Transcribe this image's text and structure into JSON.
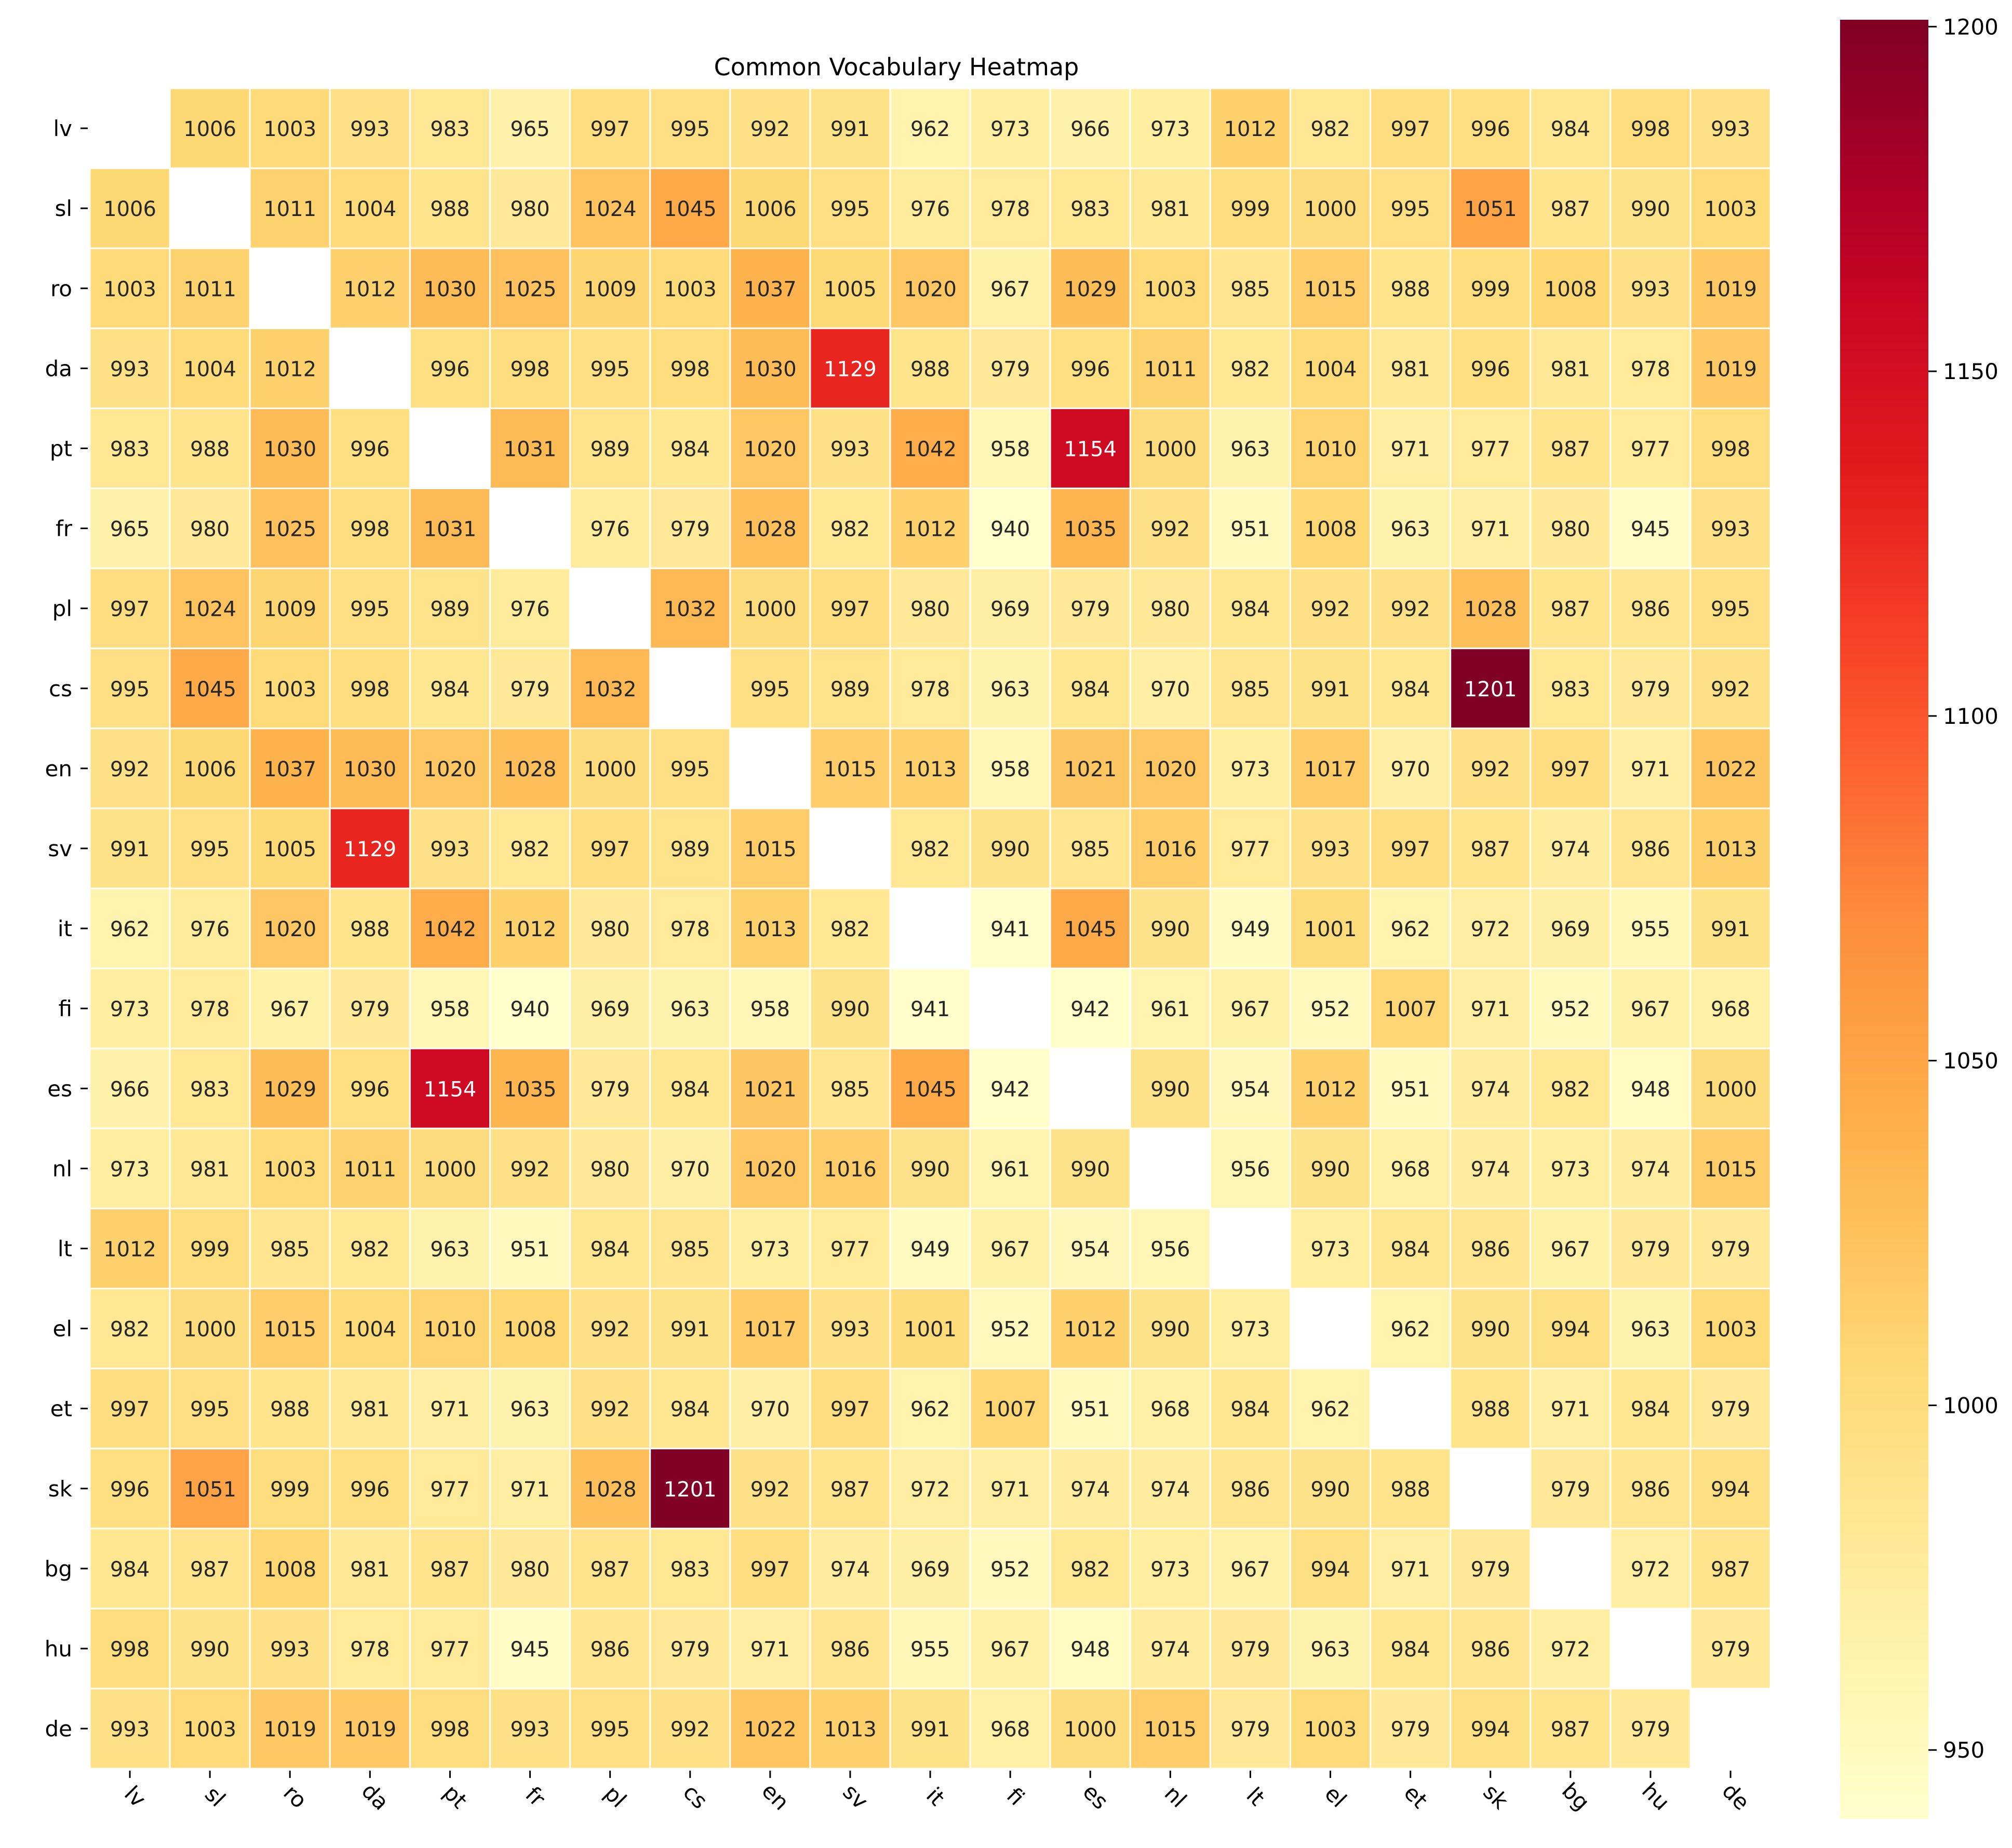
{
  "chart_data": {
    "type": "heatmap",
    "title": "Common Vocabulary Heatmap",
    "x_labels": [
      "lv",
      "sl",
      "ro",
      "da",
      "pt",
      "fr",
      "pl",
      "cs",
      "en",
      "sv",
      "it",
      "fi",
      "es",
      "nl",
      "lt",
      "el",
      "et",
      "sk",
      "bg",
      "hu",
      "de"
    ],
    "y_labels": [
      "lv",
      "sl",
      "ro",
      "da",
      "pt",
      "fr",
      "pl",
      "cs",
      "en",
      "sv",
      "it",
      "fi",
      "es",
      "nl",
      "lt",
      "el",
      "et",
      "sk",
      "bg",
      "hu",
      "de"
    ],
    "values": [
      [
        null,
        1006,
        1003,
        993,
        983,
        965,
        997,
        995,
        992,
        991,
        962,
        973,
        966,
        973,
        1012,
        982,
        997,
        996,
        984,
        998,
        993
      ],
      [
        1006,
        null,
        1011,
        1004,
        988,
        980,
        1024,
        1045,
        1006,
        995,
        976,
        978,
        983,
        981,
        999,
        1000,
        995,
        1051,
        987,
        990,
        1003
      ],
      [
        1003,
        1011,
        null,
        1012,
        1030,
        1025,
        1009,
        1003,
        1037,
        1005,
        1020,
        967,
        1029,
        1003,
        985,
        1015,
        988,
        999,
        1008,
        993,
        1019
      ],
      [
        993,
        1004,
        1012,
        null,
        996,
        998,
        995,
        998,
        1030,
        1129,
        988,
        979,
        996,
        1011,
        982,
        1004,
        981,
        996,
        981,
        978,
        1019
      ],
      [
        983,
        988,
        1030,
        996,
        null,
        1031,
        989,
        984,
        1020,
        993,
        1042,
        958,
        1154,
        1000,
        963,
        1010,
        971,
        977,
        987,
        977,
        998
      ],
      [
        965,
        980,
        1025,
        998,
        1031,
        null,
        976,
        979,
        1028,
        982,
        1012,
        940,
        1035,
        992,
        951,
        1008,
        963,
        971,
        980,
        945,
        993
      ],
      [
        997,
        1024,
        1009,
        995,
        989,
        976,
        null,
        1032,
        1000,
        997,
        980,
        969,
        979,
        980,
        984,
        992,
        992,
        1028,
        987,
        986,
        995
      ],
      [
        995,
        1045,
        1003,
        998,
        984,
        979,
        1032,
        null,
        995,
        989,
        978,
        963,
        984,
        970,
        985,
        991,
        984,
        1201,
        983,
        979,
        992
      ],
      [
        992,
        1006,
        1037,
        1030,
        1020,
        1028,
        1000,
        995,
        null,
        1015,
        1013,
        958,
        1021,
        1020,
        973,
        1017,
        970,
        992,
        997,
        971,
        1022
      ],
      [
        991,
        995,
        1005,
        1129,
        993,
        982,
        997,
        989,
        1015,
        null,
        982,
        990,
        985,
        1016,
        977,
        993,
        997,
        987,
        974,
        986,
        1013
      ],
      [
        962,
        976,
        1020,
        988,
        1042,
        1012,
        980,
        978,
        1013,
        982,
        null,
        941,
        1045,
        990,
        949,
        1001,
        962,
        972,
        969,
        955,
        991
      ],
      [
        973,
        978,
        967,
        979,
        958,
        940,
        969,
        963,
        958,
        990,
        941,
        null,
        942,
        961,
        967,
        952,
        1007,
        971,
        952,
        967,
        968
      ],
      [
        966,
        983,
        1029,
        996,
        1154,
        1035,
        979,
        984,
        1021,
        985,
        1045,
        942,
        null,
        990,
        954,
        1012,
        951,
        974,
        982,
        948,
        1000
      ],
      [
        973,
        981,
        1003,
        1011,
        1000,
        992,
        980,
        970,
        1020,
        1016,
        990,
        961,
        990,
        null,
        956,
        990,
        968,
        974,
        973,
        974,
        1015
      ],
      [
        1012,
        999,
        985,
        982,
        963,
        951,
        984,
        985,
        973,
        977,
        949,
        967,
        954,
        956,
        null,
        973,
        984,
        986,
        967,
        979,
        979
      ],
      [
        982,
        1000,
        1015,
        1004,
        1010,
        1008,
        992,
        991,
        1017,
        993,
        1001,
        952,
        1012,
        990,
        973,
        null,
        962,
        990,
        994,
        963,
        1003
      ],
      [
        997,
        995,
        988,
        981,
        971,
        963,
        992,
        984,
        970,
        997,
        962,
        1007,
        951,
        968,
        984,
        962,
        null,
        988,
        971,
        984,
        979
      ],
      [
        996,
        1051,
        999,
        996,
        977,
        971,
        1028,
        1201,
        992,
        987,
        972,
        971,
        974,
        974,
        986,
        990,
        988,
        null,
        979,
        986,
        994
      ],
      [
        984,
        987,
        1008,
        981,
        987,
        980,
        987,
        983,
        997,
        974,
        969,
        952,
        982,
        973,
        967,
        994,
        971,
        979,
        null,
        972,
        987
      ],
      [
        998,
        990,
        993,
        978,
        977,
        945,
        986,
        979,
        971,
        986,
        955,
        967,
        948,
        974,
        979,
        963,
        984,
        986,
        972,
        null,
        979
      ],
      [
        993,
        1003,
        1019,
        1019,
        998,
        993,
        995,
        992,
        1022,
        1013,
        991,
        968,
        1000,
        1015,
        979,
        1003,
        979,
        994,
        987,
        979,
        null
      ]
    ],
    "colormap": "YlOrRd",
    "colorbar": {
      "min": 940,
      "max": 1201,
      "ticks": [
        950,
        1000,
        1050,
        1100,
        1150,
        1200
      ]
    },
    "diagonal": "blank",
    "cell_border_color": "#ffffff",
    "annotations": "values shown in each cell",
    "x_tick_rotation": "45 degrees"
  }
}
